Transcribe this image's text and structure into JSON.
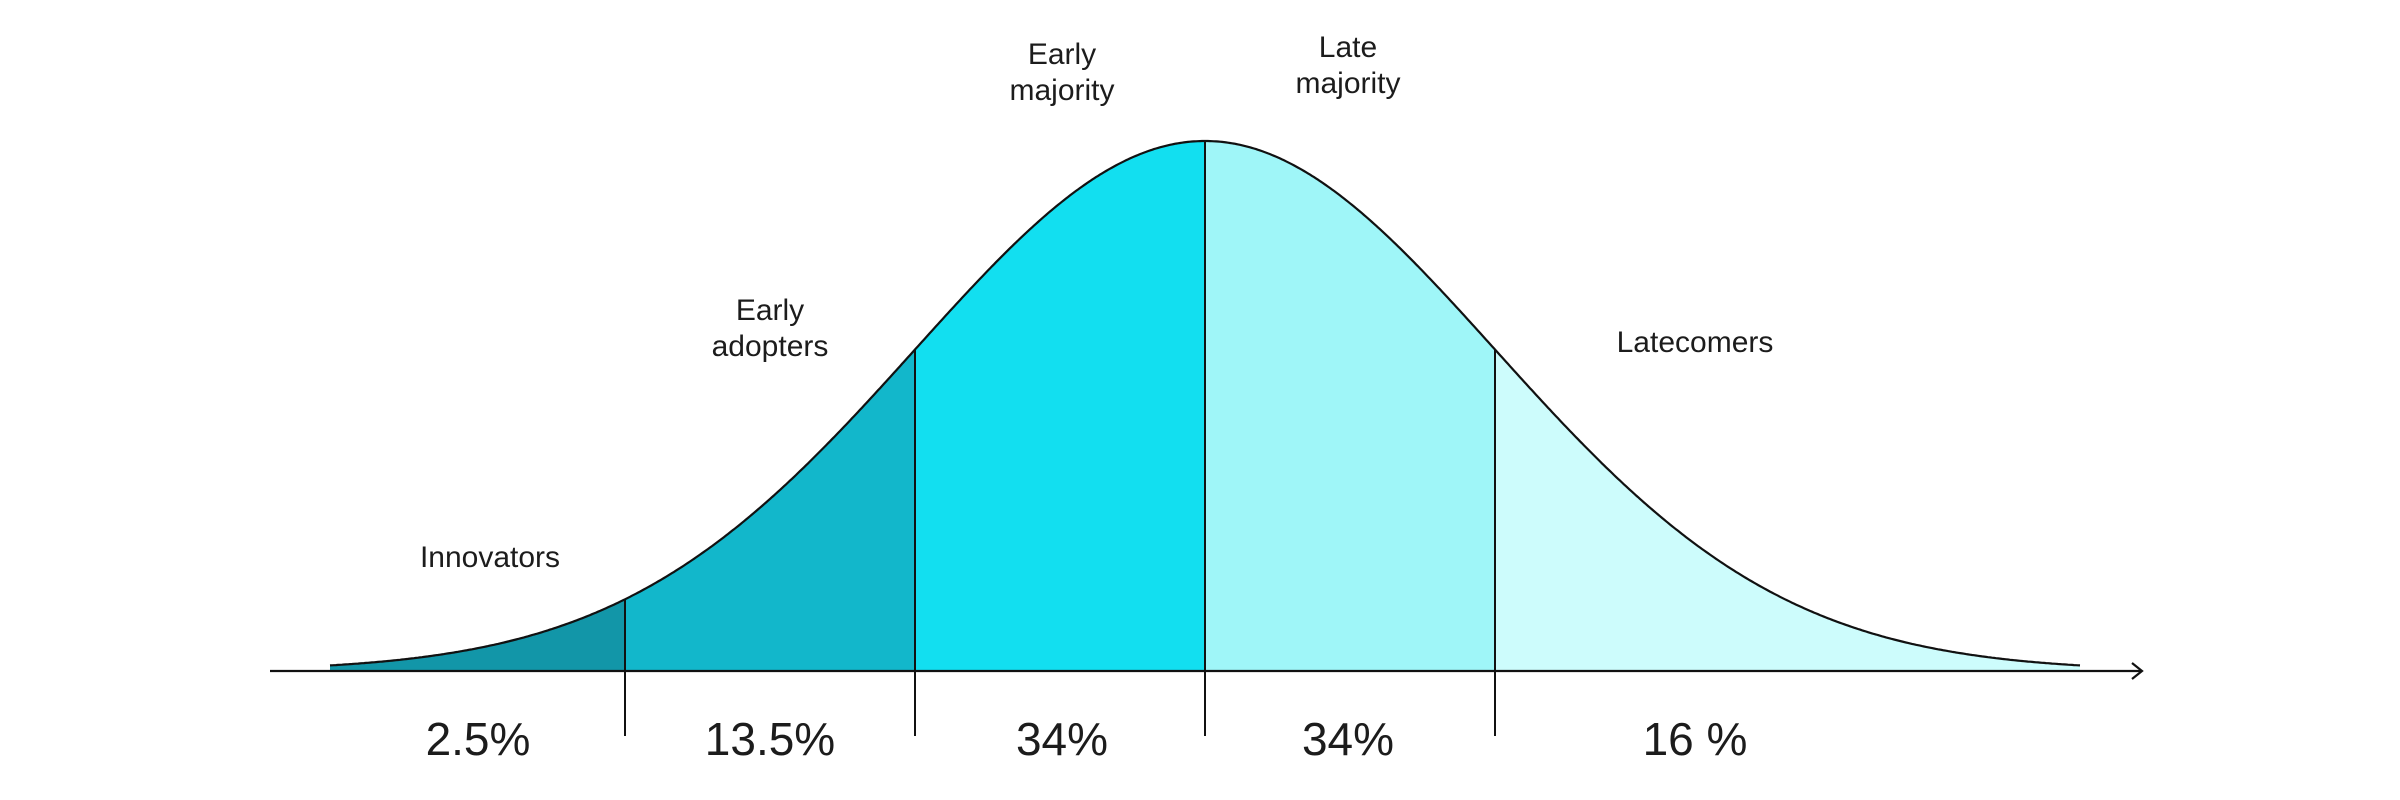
{
  "segments": [
    {
      "label": "Innovators",
      "percent_label": "2.5%",
      "share": 2.5,
      "color": "#1296a8"
    },
    {
      "label": "Early\nadopters",
      "percent_label": "13.5%",
      "share": 13.5,
      "color": "#12b7cb"
    },
    {
      "label": "Early\nmajority",
      "percent_label": "34%",
      "share": 34,
      "color": "#12dff0"
    },
    {
      "label": "Late\nmajority",
      "percent_label": "34%",
      "share": 34,
      "color": "#9ff6f8"
    },
    {
      "label": "Latecomers",
      "percent_label": "16 %",
      "share": 16,
      "color": "#cdfcfc"
    }
  ],
  "style": {
    "line_color": "#111111",
    "text_color": "#1c1c1c"
  }
}
